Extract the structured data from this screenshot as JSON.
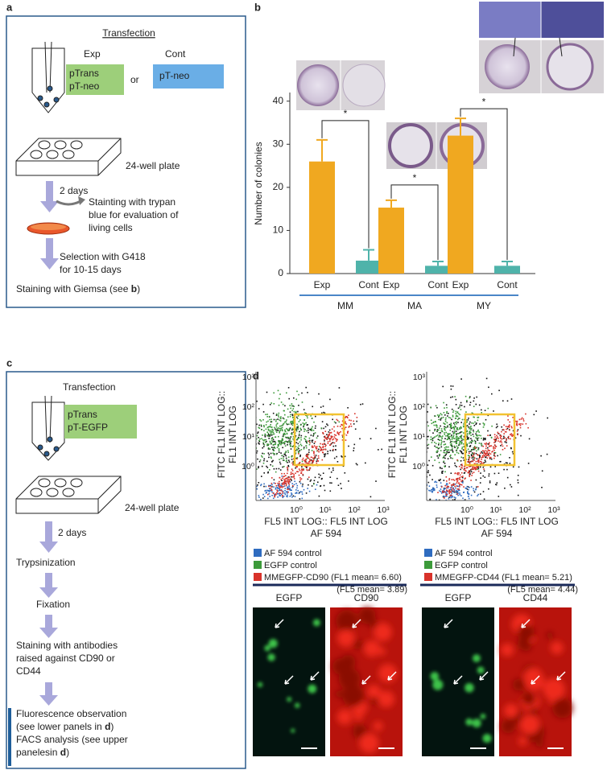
{
  "panels": {
    "a": {
      "label": "a",
      "title": "Transfection",
      "exp_label": "Exp",
      "exp_box": [
        "pTrans",
        "pT-neo"
      ],
      "or": "or",
      "cont_label": "Cont",
      "cont_box": "pT-neo",
      "plate": "24-well plate",
      "step1": "2 days",
      "side_note": [
        "Stainting with trypan",
        "blue for evaluation of",
        "living cells"
      ],
      "step2": [
        "Selection with G418",
        "for 10-15 days"
      ],
      "final": {
        "text": "Staining with Giemsa (see ",
        "ref": "b",
        "end": ")"
      }
    },
    "b": {
      "label": "b"
    },
    "c": {
      "label": "c",
      "title": "Transfection",
      "box": [
        "pTrans",
        "pT-EGFP"
      ],
      "plate": "24-well plate",
      "step1": "2 days",
      "step2": "Trypsinization",
      "step3": "Fixation",
      "step4": [
        "Staining with antibodies",
        "raised against CD90 or",
        "CD44"
      ],
      "final": {
        "line1": "Fluorescence observation",
        "line2": "(see lower panels in ",
        "line2_ref": "d",
        "line2_end": ")",
        "line3": "FACS analysis (see upper",
        "line4": "panelesin ",
        "line4_ref": "d",
        "line4_end": ")"
      }
    },
    "d": {
      "label": "d",
      "legend_colors": [
        "#2f6cc0",
        "#3c9a3a",
        "#d8322a"
      ],
      "plots": [
        {
          "y_label": [
            "FITC FL1 INT LOG::",
            "FL1 INT LOG"
          ],
          "x_label": [
            "FL5 INT LOG:: FL5 INT LOG",
            "AF 594"
          ],
          "xticks": [
            "10⁰",
            "10¹",
            "10²",
            "10³"
          ],
          "yticks": [
            "10⁰",
            "10¹",
            "10²",
            "10³"
          ],
          "legend": [
            "AF 594 control",
            "EGFP control",
            "MMEGFP-CD90 (FL1 mean= 6.60)"
          ],
          "legend_extra": "(FL5 mean= 3.89)"
        },
        {
          "y_label": [
            "FITC FL1 INT LOG::",
            "FL1 INT LOG"
          ],
          "x_label": [
            "FL5 INT LOG:: FL5 INT LOG",
            "AF 594"
          ],
          "xticks": [
            "10⁰",
            "10¹",
            "10²",
            "10³"
          ],
          "yticks": [
            "10⁰",
            "10¹",
            "10²",
            "10³"
          ],
          "legend": [
            "AF 594 control",
            "EGFP control",
            "MMEGFP-CD44 (FL1 mean= 5.21)"
          ],
          "legend_extra": "(FL5 mean= 4.44)"
        }
      ],
      "micro_labels": [
        "EGFP",
        "CD90",
        "EGFP",
        "CD44"
      ]
    }
  },
  "chart_data": {
    "type": "bar",
    "y_label": "Number of colonies",
    "categories": [
      "Exp",
      "Cont",
      "Exp",
      "Cont",
      "Exp",
      "Cont"
    ],
    "groups": [
      "MM",
      "MA",
      "MY"
    ],
    "values": [
      26,
      3,
      15.3,
      1.8,
      32,
      1.8
    ],
    "errors": [
      5,
      2.5,
      1.7,
      1,
      4,
      1
    ],
    "colors": [
      "#f0a820",
      "#4fb3aa",
      "#f0a820",
      "#4fb3aa",
      "#f0a820",
      "#4fb3aa"
    ],
    "annotations": [
      "*",
      "*",
      "*"
    ],
    "ylim": [
      0,
      42
    ],
    "yticks": [
      0,
      10,
      20,
      30,
      40
    ]
  }
}
